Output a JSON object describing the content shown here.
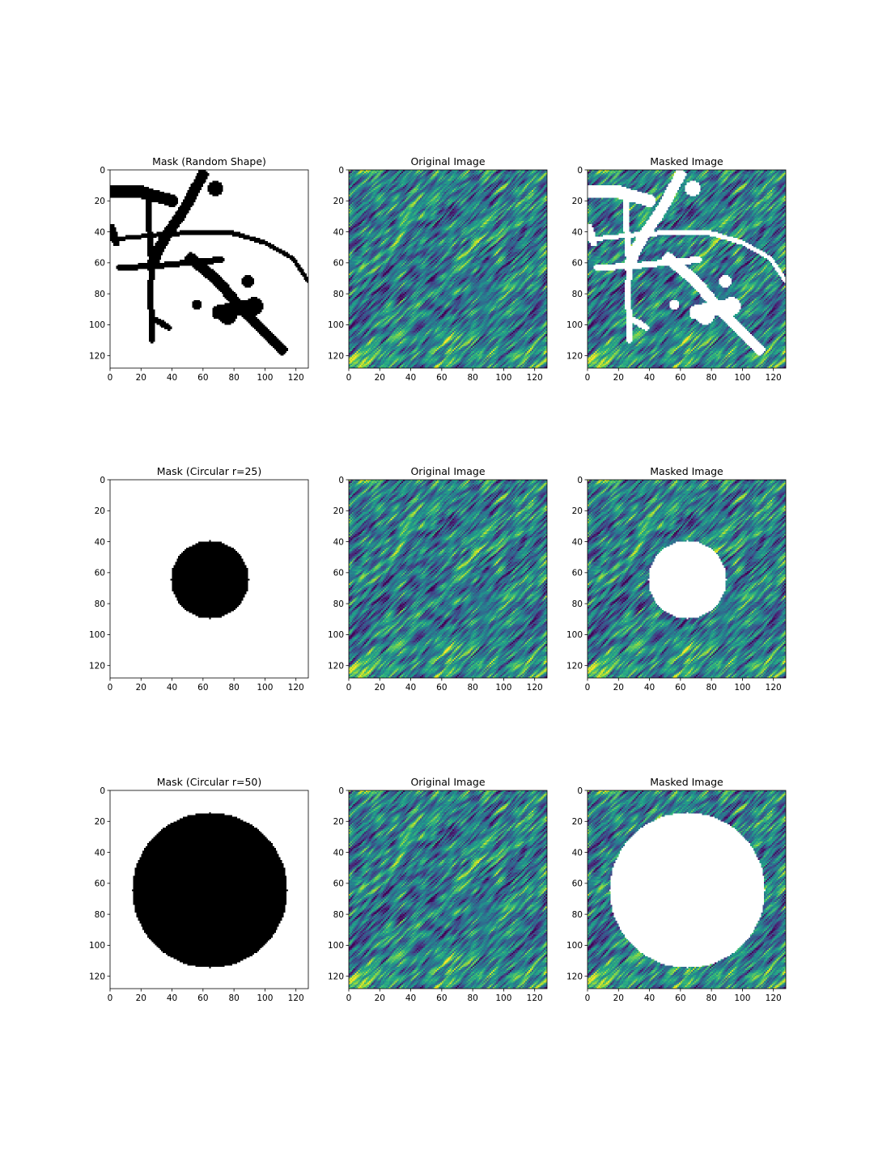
{
  "figure": {
    "rows": 3,
    "cols": 3
  },
  "chart_data": [
    {
      "type": "heatmap",
      "title": "Mask (Random Shape)",
      "content": "mask",
      "mask": "random",
      "colormap": "gray",
      "xlim": [
        0,
        128
      ],
      "ylim": [
        128,
        0
      ],
      "xticks": [
        0,
        20,
        40,
        60,
        80,
        100,
        120
      ],
      "yticks": [
        0,
        20,
        40,
        60,
        80,
        100,
        120
      ]
    },
    {
      "type": "heatmap",
      "title": "Original Image",
      "content": "original",
      "mask": "none",
      "colormap": "viridis",
      "xlim": [
        0,
        128
      ],
      "ylim": [
        128,
        0
      ],
      "xticks": [
        0,
        20,
        40,
        60,
        80,
        100,
        120
      ],
      "yticks": [
        0,
        20,
        40,
        60,
        80,
        100,
        120
      ]
    },
    {
      "type": "heatmap",
      "title": "Masked Image",
      "content": "masked",
      "mask": "random",
      "colormap": "viridis",
      "xlim": [
        0,
        128
      ],
      "ylim": [
        128,
        0
      ],
      "xticks": [
        0,
        20,
        40,
        60,
        80,
        100,
        120
      ],
      "yticks": [
        0,
        20,
        40,
        60,
        80,
        100,
        120
      ]
    },
    {
      "type": "heatmap",
      "title": "Mask (Circular r=25)",
      "content": "mask",
      "mask": "circle",
      "circle": {
        "cx": 64,
        "cy": 64,
        "r": 25
      },
      "colormap": "gray",
      "xlim": [
        0,
        128
      ],
      "ylim": [
        128,
        0
      ],
      "xticks": [
        0,
        20,
        40,
        60,
        80,
        100,
        120
      ],
      "yticks": [
        0,
        20,
        40,
        60,
        80,
        100,
        120
      ]
    },
    {
      "type": "heatmap",
      "title": "Original Image",
      "content": "original",
      "mask": "none",
      "colormap": "viridis",
      "xlim": [
        0,
        128
      ],
      "ylim": [
        128,
        0
      ],
      "xticks": [
        0,
        20,
        40,
        60,
        80,
        100,
        120
      ],
      "yticks": [
        0,
        20,
        40,
        60,
        80,
        100,
        120
      ]
    },
    {
      "type": "heatmap",
      "title": "Masked Image",
      "content": "masked",
      "mask": "circle",
      "circle": {
        "cx": 64,
        "cy": 64,
        "r": 25
      },
      "colormap": "viridis",
      "xlim": [
        0,
        128
      ],
      "ylim": [
        128,
        0
      ],
      "xticks": [
        0,
        20,
        40,
        60,
        80,
        100,
        120
      ],
      "yticks": [
        0,
        20,
        40,
        60,
        80,
        100,
        120
      ]
    },
    {
      "type": "heatmap",
      "title": "Mask (Circular r=50)",
      "content": "mask",
      "mask": "circle",
      "circle": {
        "cx": 64,
        "cy": 64,
        "r": 50
      },
      "colormap": "gray",
      "xlim": [
        0,
        128
      ],
      "ylim": [
        128,
        0
      ],
      "xticks": [
        0,
        20,
        40,
        60,
        80,
        100,
        120
      ],
      "yticks": [
        0,
        20,
        40,
        60,
        80,
        100,
        120
      ]
    },
    {
      "type": "heatmap",
      "title": "Original Image",
      "content": "original",
      "mask": "none",
      "colormap": "viridis",
      "xlim": [
        0,
        128
      ],
      "ylim": [
        128,
        0
      ],
      "xticks": [
        0,
        20,
        40,
        60,
        80,
        100,
        120
      ],
      "yticks": [
        0,
        20,
        40,
        60,
        80,
        100,
        120
      ]
    },
    {
      "type": "heatmap",
      "title": "Masked Image",
      "content": "masked",
      "mask": "circle",
      "circle": {
        "cx": 64,
        "cy": 64,
        "r": 50
      },
      "colormap": "viridis",
      "xlim": [
        0,
        128
      ],
      "ylim": [
        128,
        0
      ],
      "xticks": [
        0,
        20,
        40,
        60,
        80,
        100,
        120
      ],
      "yticks": [
        0,
        20,
        40,
        60,
        80,
        100,
        120
      ]
    }
  ],
  "random_mask_shapes": [
    {
      "kind": "line",
      "points": [
        [
          0,
          14
        ],
        [
          20,
          14
        ],
        [
          25,
          16
        ],
        [
          30,
          17
        ],
        [
          40,
          20
        ]
      ],
      "width": 8
    },
    {
      "kind": "line",
      "points": [
        [
          60,
          3
        ],
        [
          54,
          14
        ],
        [
          50,
          22
        ],
        [
          45,
          30
        ],
        [
          38,
          40
        ],
        [
          32,
          50
        ],
        [
          27,
          62
        ]
      ],
      "width": 7
    },
    {
      "kind": "line",
      "points": [
        [
          25,
          16
        ],
        [
          25,
          30
        ],
        [
          26,
          50
        ],
        [
          27,
          62
        ],
        [
          26,
          80
        ],
        [
          27,
          100
        ],
        [
          27,
          110
        ]
      ],
      "width": 4
    },
    {
      "kind": "line",
      "points": [
        [
          0,
          45
        ],
        [
          30,
          42
        ],
        [
          60,
          40
        ],
        [
          80,
          41
        ],
        [
          100,
          47
        ],
        [
          118,
          57
        ],
        [
          128,
          72
        ]
      ],
      "width": 3
    },
    {
      "kind": "line",
      "points": [
        [
          6,
          63
        ],
        [
          30,
          62
        ],
        [
          50,
          60
        ],
        [
          72,
          58
        ]
      ],
      "width": 4
    },
    {
      "kind": "line",
      "points": [
        [
          52,
          57
        ],
        [
          70,
          72
        ],
        [
          85,
          90
        ],
        [
          100,
          105
        ],
        [
          111,
          116
        ]
      ],
      "width": 7
    },
    {
      "kind": "line",
      "points": [
        [
          70,
          92
        ],
        [
          90,
          88
        ]
      ],
      "width": 9
    },
    {
      "kind": "line",
      "points": [
        [
          1,
          37
        ],
        [
          4,
          47
        ]
      ],
      "width": 5
    },
    {
      "kind": "line",
      "points": [
        [
          30,
          97
        ],
        [
          38,
          102
        ]
      ],
      "width": 4
    },
    {
      "kind": "circle",
      "cx": 68,
      "cy": 12,
      "r": 5
    },
    {
      "kind": "circle",
      "cx": 89,
      "cy": 72,
      "r": 4
    },
    {
      "kind": "circle",
      "cx": 56,
      "cy": 87,
      "r": 3
    },
    {
      "kind": "circle",
      "cx": 93,
      "cy": 88,
      "r": 6
    },
    {
      "kind": "circle",
      "cx": 76,
      "cy": 94,
      "r": 6
    }
  ]
}
